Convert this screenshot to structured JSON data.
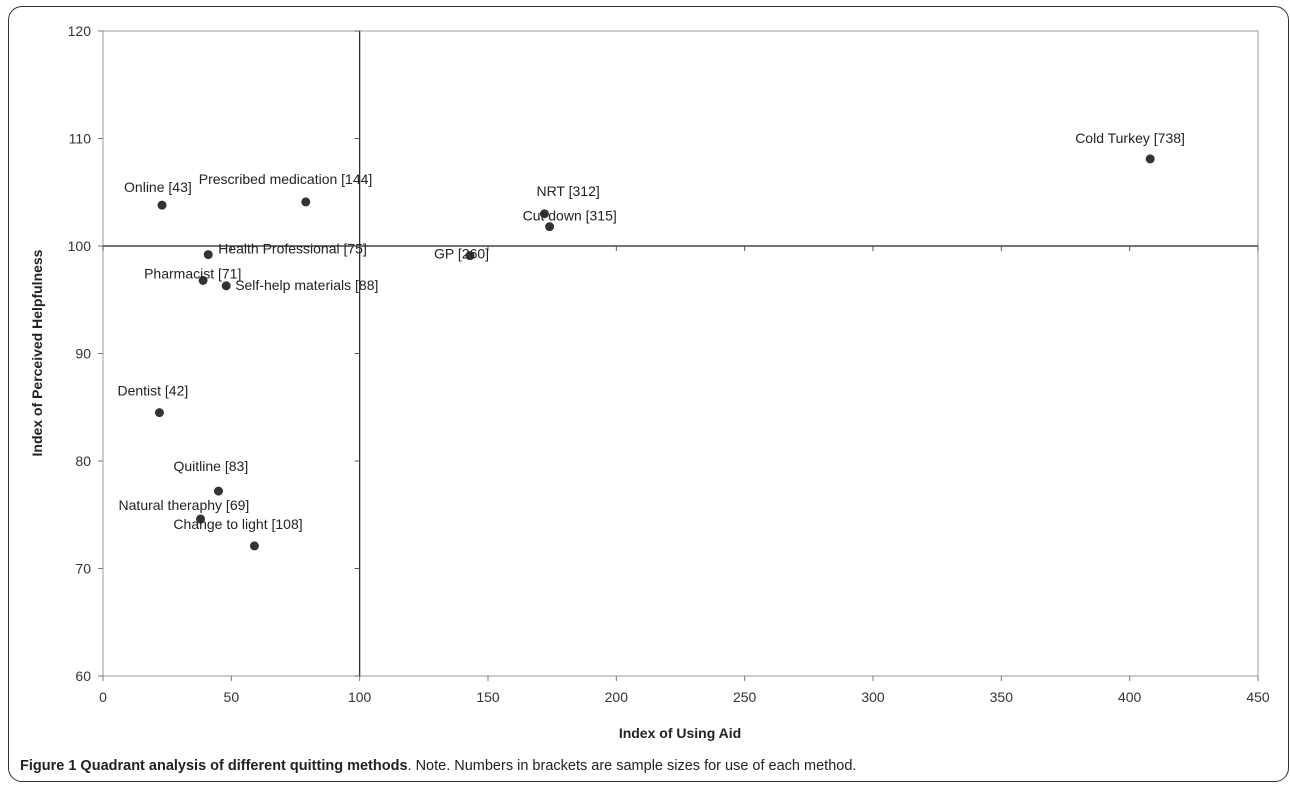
{
  "chart_data": {
    "type": "scatter",
    "xlabel": "Index of Using Aid",
    "ylabel": "Index of Perceived Helpfulness",
    "xlim": [
      0,
      450
    ],
    "ylim": [
      60,
      120
    ],
    "xticks": [
      0,
      50,
      100,
      150,
      200,
      250,
      300,
      350,
      400,
      450
    ],
    "yticks": [
      60,
      70,
      80,
      90,
      100,
      110,
      120
    ],
    "reference_lines": {
      "x": 100,
      "y": 100
    },
    "grid": false,
    "points": [
      {
        "label": "Online [43]",
        "x": 23,
        "y": 103.8
      },
      {
        "label": "Prescribed medication [144]",
        "x": 79,
        "y": 104.1
      },
      {
        "label": "Health Professional [75]",
        "x": 41,
        "y": 99.2
      },
      {
        "label": "Pharmacist [71]",
        "x": 39,
        "y": 96.8
      },
      {
        "label": "Self-help materials [88]",
        "x": 48,
        "y": 96.3
      },
      {
        "label": "Dentist [42]",
        "x": 22,
        "y": 84.5
      },
      {
        "label": "Quitline [83]",
        "x": 45,
        "y": 77.2
      },
      {
        "label": "Natural theraphy [69]",
        "x": 38,
        "y": 74.6
      },
      {
        "label": "Change to light [108]",
        "x": 59,
        "y": 72.1
      },
      {
        "label": "NRT [312]",
        "x": 172,
        "y": 103.0
      },
      {
        "label": "Cut down [315]",
        "x": 174,
        "y": 101.8
      },
      {
        "label": "GP [260]",
        "x": 143,
        "y": 99.1
      },
      {
        "label": "Cold Turkey [738]",
        "x": 408,
        "y": 108.1
      }
    ]
  },
  "caption": {
    "lead": "Figure 1 Quadrant analysis of different quitting methods",
    "rest": ". Note. Numbers in brackets are sample sizes for use of each method."
  }
}
